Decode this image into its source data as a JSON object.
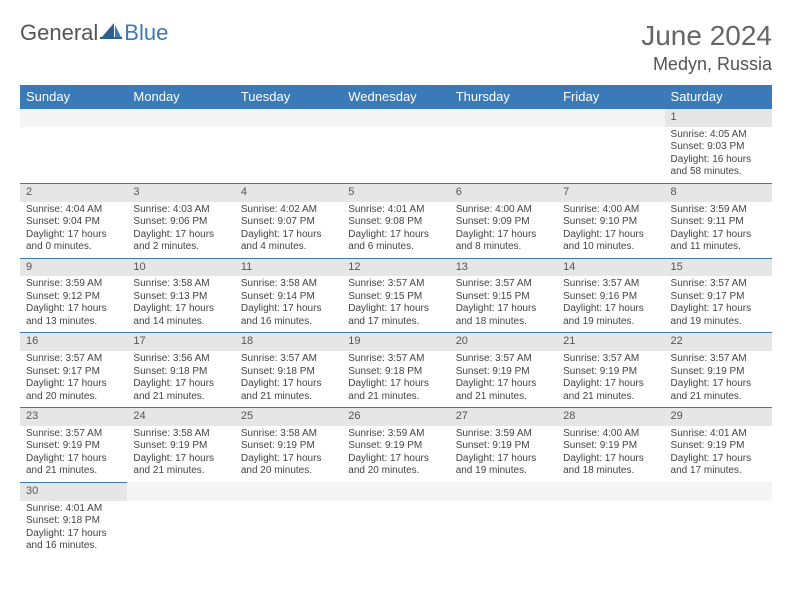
{
  "brand": {
    "general": "General",
    "blue": "Blue"
  },
  "header": {
    "month": "June 2024",
    "location": "Medyn, Russia"
  },
  "colors": {
    "header_bg": "#3a7ab8",
    "header_text": "#ffffff",
    "daynum_bg": "#e6e6e6",
    "cell_border": "#3a7ab8",
    "body_text": "#444444"
  },
  "weekdays": [
    "Sunday",
    "Monday",
    "Tuesday",
    "Wednesday",
    "Thursday",
    "Friday",
    "Saturday"
  ],
  "weeks": [
    [
      null,
      null,
      null,
      null,
      null,
      null,
      {
        "n": "1",
        "sr": "Sunrise: 4:05 AM",
        "ss": "Sunset: 9:03 PM",
        "dl": "Daylight: 16 hours and 58 minutes."
      }
    ],
    [
      {
        "n": "2",
        "sr": "Sunrise: 4:04 AM",
        "ss": "Sunset: 9:04 PM",
        "dl": "Daylight: 17 hours and 0 minutes."
      },
      {
        "n": "3",
        "sr": "Sunrise: 4:03 AM",
        "ss": "Sunset: 9:06 PM",
        "dl": "Daylight: 17 hours and 2 minutes."
      },
      {
        "n": "4",
        "sr": "Sunrise: 4:02 AM",
        "ss": "Sunset: 9:07 PM",
        "dl": "Daylight: 17 hours and 4 minutes."
      },
      {
        "n": "5",
        "sr": "Sunrise: 4:01 AM",
        "ss": "Sunset: 9:08 PM",
        "dl": "Daylight: 17 hours and 6 minutes."
      },
      {
        "n": "6",
        "sr": "Sunrise: 4:00 AM",
        "ss": "Sunset: 9:09 PM",
        "dl": "Daylight: 17 hours and 8 minutes."
      },
      {
        "n": "7",
        "sr": "Sunrise: 4:00 AM",
        "ss": "Sunset: 9:10 PM",
        "dl": "Daylight: 17 hours and 10 minutes."
      },
      {
        "n": "8",
        "sr": "Sunrise: 3:59 AM",
        "ss": "Sunset: 9:11 PM",
        "dl": "Daylight: 17 hours and 11 minutes."
      }
    ],
    [
      {
        "n": "9",
        "sr": "Sunrise: 3:59 AM",
        "ss": "Sunset: 9:12 PM",
        "dl": "Daylight: 17 hours and 13 minutes."
      },
      {
        "n": "10",
        "sr": "Sunrise: 3:58 AM",
        "ss": "Sunset: 9:13 PM",
        "dl": "Daylight: 17 hours and 14 minutes."
      },
      {
        "n": "11",
        "sr": "Sunrise: 3:58 AM",
        "ss": "Sunset: 9:14 PM",
        "dl": "Daylight: 17 hours and 16 minutes."
      },
      {
        "n": "12",
        "sr": "Sunrise: 3:57 AM",
        "ss": "Sunset: 9:15 PM",
        "dl": "Daylight: 17 hours and 17 minutes."
      },
      {
        "n": "13",
        "sr": "Sunrise: 3:57 AM",
        "ss": "Sunset: 9:15 PM",
        "dl": "Daylight: 17 hours and 18 minutes."
      },
      {
        "n": "14",
        "sr": "Sunrise: 3:57 AM",
        "ss": "Sunset: 9:16 PM",
        "dl": "Daylight: 17 hours and 19 minutes."
      },
      {
        "n": "15",
        "sr": "Sunrise: 3:57 AM",
        "ss": "Sunset: 9:17 PM",
        "dl": "Daylight: 17 hours and 19 minutes."
      }
    ],
    [
      {
        "n": "16",
        "sr": "Sunrise: 3:57 AM",
        "ss": "Sunset: 9:17 PM",
        "dl": "Daylight: 17 hours and 20 minutes."
      },
      {
        "n": "17",
        "sr": "Sunrise: 3:56 AM",
        "ss": "Sunset: 9:18 PM",
        "dl": "Daylight: 17 hours and 21 minutes."
      },
      {
        "n": "18",
        "sr": "Sunrise: 3:57 AM",
        "ss": "Sunset: 9:18 PM",
        "dl": "Daylight: 17 hours and 21 minutes."
      },
      {
        "n": "19",
        "sr": "Sunrise: 3:57 AM",
        "ss": "Sunset: 9:18 PM",
        "dl": "Daylight: 17 hours and 21 minutes."
      },
      {
        "n": "20",
        "sr": "Sunrise: 3:57 AM",
        "ss": "Sunset: 9:19 PM",
        "dl": "Daylight: 17 hours and 21 minutes."
      },
      {
        "n": "21",
        "sr": "Sunrise: 3:57 AM",
        "ss": "Sunset: 9:19 PM",
        "dl": "Daylight: 17 hours and 21 minutes."
      },
      {
        "n": "22",
        "sr": "Sunrise: 3:57 AM",
        "ss": "Sunset: 9:19 PM",
        "dl": "Daylight: 17 hours and 21 minutes."
      }
    ],
    [
      {
        "n": "23",
        "sr": "Sunrise: 3:57 AM",
        "ss": "Sunset: 9:19 PM",
        "dl": "Daylight: 17 hours and 21 minutes."
      },
      {
        "n": "24",
        "sr": "Sunrise: 3:58 AM",
        "ss": "Sunset: 9:19 PM",
        "dl": "Daylight: 17 hours and 21 minutes."
      },
      {
        "n": "25",
        "sr": "Sunrise: 3:58 AM",
        "ss": "Sunset: 9:19 PM",
        "dl": "Daylight: 17 hours and 20 minutes."
      },
      {
        "n": "26",
        "sr": "Sunrise: 3:59 AM",
        "ss": "Sunset: 9:19 PM",
        "dl": "Daylight: 17 hours and 20 minutes."
      },
      {
        "n": "27",
        "sr": "Sunrise: 3:59 AM",
        "ss": "Sunset: 9:19 PM",
        "dl": "Daylight: 17 hours and 19 minutes."
      },
      {
        "n": "28",
        "sr": "Sunrise: 4:00 AM",
        "ss": "Sunset: 9:19 PM",
        "dl": "Daylight: 17 hours and 18 minutes."
      },
      {
        "n": "29",
        "sr": "Sunrise: 4:01 AM",
        "ss": "Sunset: 9:19 PM",
        "dl": "Daylight: 17 hours and 17 minutes."
      }
    ],
    [
      {
        "n": "30",
        "sr": "Sunrise: 4:01 AM",
        "ss": "Sunset: 9:18 PM",
        "dl": "Daylight: 17 hours and 16 minutes."
      },
      null,
      null,
      null,
      null,
      null,
      null
    ]
  ]
}
